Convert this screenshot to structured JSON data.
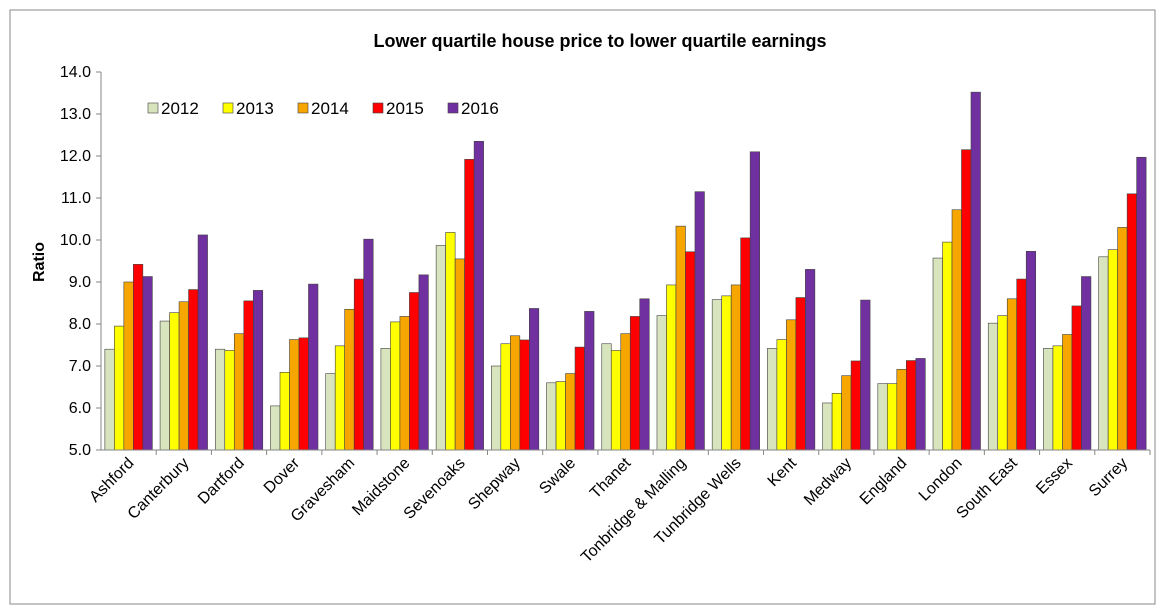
{
  "chart_data": {
    "type": "bar",
    "title": "Lower quartile house price to lower quartile earnings",
    "y_label": "Ratio",
    "categories": [
      "Ashford",
      "Canterbury",
      "Dartford",
      "Dover",
      "Gravesham",
      "Maidstone",
      "Sevenoaks",
      "Shepway",
      "Swale",
      "Thanet",
      "Tonbridge & Malling",
      "Tunbridge Wells",
      "Kent",
      "Medway",
      "England",
      "London",
      "South East",
      "Essex",
      "Surrey"
    ],
    "series": [
      {
        "name": "2012",
        "color": "#d7e4bd",
        "values": [
          7.4,
          8.07,
          7.4,
          6.05,
          6.82,
          7.42,
          9.87,
          7.0,
          6.6,
          7.53,
          8.2,
          8.58,
          7.42,
          6.12,
          6.58,
          9.57,
          8.02,
          7.42,
          9.6
        ]
      },
      {
        "name": "2013",
        "color": "#ffff00",
        "values": [
          7.95,
          8.27,
          7.37,
          6.85,
          7.48,
          8.05,
          10.18,
          7.53,
          6.63,
          7.37,
          8.93,
          8.67,
          7.63,
          6.35,
          6.58,
          9.95,
          8.2,
          7.48,
          9.77
        ]
      },
      {
        "name": "2014",
        "color": "#f7a600",
        "values": [
          9.0,
          8.53,
          7.77,
          7.63,
          8.35,
          8.18,
          9.55,
          7.72,
          6.82,
          7.77,
          10.33,
          8.93,
          8.1,
          6.77,
          6.92,
          10.72,
          8.6,
          7.75,
          10.3
        ]
      },
      {
        "name": "2015",
        "color": "#ff0000",
        "values": [
          9.42,
          8.82,
          8.55,
          7.67,
          9.07,
          8.75,
          11.92,
          7.62,
          7.45,
          8.18,
          9.72,
          10.05,
          8.63,
          7.12,
          7.13,
          12.15,
          9.07,
          8.43,
          11.1
        ]
      },
      {
        "name": "2016",
        "color": "#7030a0",
        "values": [
          9.13,
          10.12,
          8.8,
          8.95,
          10.02,
          9.17,
          12.35,
          8.37,
          8.3,
          8.6,
          11.15,
          12.1,
          9.3,
          8.57,
          7.18,
          13.52,
          9.73,
          9.13,
          11.97
        ]
      }
    ],
    "ylim": [
      5,
      14
    ],
    "yticks": [
      {
        "value": 5,
        "label": "5.0"
      },
      {
        "value": 6,
        "label": "6.0"
      },
      {
        "value": 7,
        "label": "7.0"
      },
      {
        "value": 8,
        "label": "8.0"
      },
      {
        "value": 9,
        "label": "9.0"
      },
      {
        "value": 10,
        "label": "10.0"
      },
      {
        "value": 11,
        "label": "11.0"
      },
      {
        "value": 12,
        "label": "12.0"
      },
      {
        "value": 13,
        "label": "13.0"
      },
      {
        "value": 14,
        "label": "14.0"
      }
    ],
    "grid": false,
    "legend": "top-left"
  }
}
